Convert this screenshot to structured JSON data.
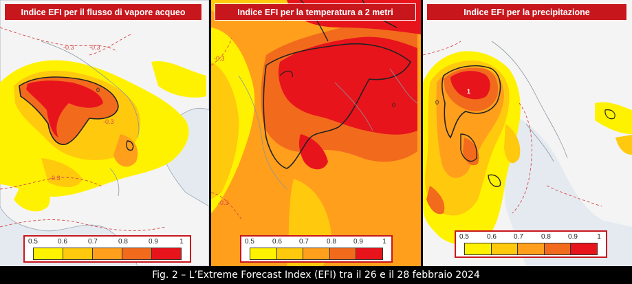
{
  "panels": [
    {
      "title": "Indice EFI per il flusso di vapore acqueo"
    },
    {
      "title": "Indice EFI per la temperatura a 2 metri"
    },
    {
      "title": "Indice EFI per la precipitazione"
    }
  ],
  "legend": {
    "ticks": [
      "0.5",
      "0.6",
      "0.7",
      "0.8",
      "0.9",
      "1"
    ],
    "colors": [
      "#fff200",
      "#ffc90e",
      "#ff9f1c",
      "#f26b1d",
      "#e8141c"
    ]
  },
  "contour_labels": {
    "vapor": [
      "-0.3",
      "-0.3",
      "-0.3",
      "-0.3",
      "0"
    ],
    "temperature": [
      "-0.3",
      "-0.3",
      "0"
    ],
    "precipitation": [
      "0",
      "1"
    ]
  },
  "caption": "Fig. 2 – L’Extreme Forecast Index (EFI) tra il 26 e il 28 febbraio 2024"
}
